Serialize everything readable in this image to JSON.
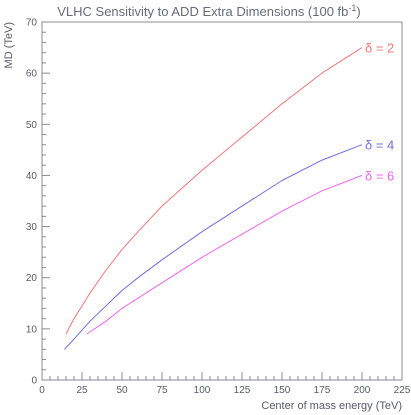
{
  "chart_data": {
    "type": "line",
    "title": "VLHC Sensitivity to ADD Extra Dimensions (100 fb",
    "title_superscript": "-1",
    "title_suffix": ")",
    "xlabel": "Center of mass energy (TeV)",
    "ylabel": "MD (TeV)",
    "xlim": [
      0,
      225
    ],
    "ylim": [
      0,
      70
    ],
    "xticks": [
      0,
      25,
      50,
      75,
      100,
      125,
      150,
      175,
      200,
      225
    ],
    "yticks": [
      0,
      10,
      20,
      30,
      40,
      50,
      60,
      70
    ],
    "grid": false,
    "series": [
      {
        "name": "δ = 2",
        "color": "#ee7777",
        "x": [
          15,
          20,
          30,
          40,
          50,
          60,
          75,
          100,
          125,
          150,
          175,
          200
        ],
        "values": [
          9,
          12,
          17,
          21.5,
          25.5,
          29,
          34,
          41,
          47.5,
          54,
          60,
          65
        ]
      },
      {
        "name": "δ = 4",
        "color": "#6f6fe0",
        "x": [
          14,
          20,
          30,
          40,
          50,
          60,
          75,
          100,
          125,
          150,
          175,
          200
        ],
        "values": [
          6,
          8,
          11.5,
          14.5,
          17.5,
          20,
          23.5,
          29,
          34,
          39,
          43,
          46
        ]
      },
      {
        "name": "δ = 6",
        "color": "#ee66ee",
        "x": [
          28,
          40,
          50,
          60,
          75,
          100,
          125,
          150,
          175,
          200
        ],
        "values": [
          9,
          11.5,
          14,
          16,
          19,
          24,
          28.5,
          33,
          37,
          40
        ]
      }
    ]
  }
}
